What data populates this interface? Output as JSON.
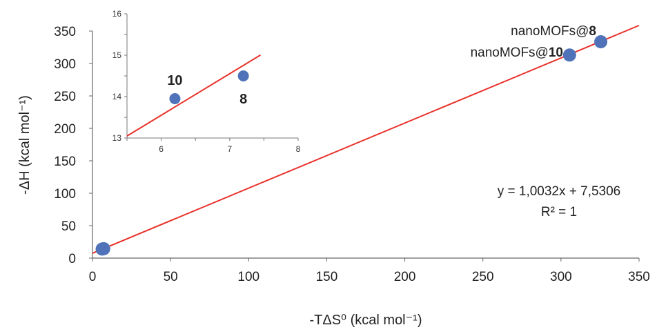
{
  "chart_data": [
    {
      "type": "scatter",
      "title": "",
      "xlabel": "-TΔS⁰ (kcal mol⁻¹)",
      "ylabel": "-ΔH (kcal mol⁻¹)",
      "xlim": [
        0,
        350
      ],
      "ylim": [
        0,
        350
      ],
      "x_ticks": [
        "0",
        "50",
        "100",
        "150",
        "200",
        "250",
        "300",
        "350"
      ],
      "y_ticks": [
        "0",
        "50",
        "100",
        "150",
        "200",
        "250",
        "300",
        "350"
      ],
      "grid": false,
      "series": [
        {
          "points": [
            {
              "x": 6.2,
              "y": 13.9
            },
            {
              "x": 7.2,
              "y": 14.5
            },
            {
              "x": 305.5,
              "y": 313
            },
            {
              "x": 325.5,
              "y": 333.5
            }
          ]
        }
      ],
      "trendline": {
        "slope": 1.0032,
        "intercept": 7.5306,
        "color": "#e8322a"
      },
      "point_color": "#4f72b8",
      "annotations": {
        "equation": "y = 1,0032x + 7,5306",
        "r2": "R² = 1",
        "label_8_prefix": "nanoMOFs@",
        "label_8_num": "8",
        "label_10_prefix": "nanoMOFs@",
        "label_10_num": "10"
      }
    },
    {
      "type": "scatter",
      "title": "",
      "xlim": [
        5.5,
        8
      ],
      "ylim": [
        13,
        16
      ],
      "x_ticks": [
        "6",
        "7",
        "8"
      ],
      "y_ticks": [
        "13",
        "14",
        "15",
        "16"
      ],
      "series": [
        {
          "points": [
            {
              "x": 6.2,
              "y": 13.95,
              "label": "10"
            },
            {
              "x": 7.2,
              "y": 14.5,
              "label": "8"
            }
          ]
        }
      ],
      "trendline": {
        "slope": 1.0032,
        "intercept": 7.5306,
        "color": "#e8322a"
      }
    }
  ]
}
